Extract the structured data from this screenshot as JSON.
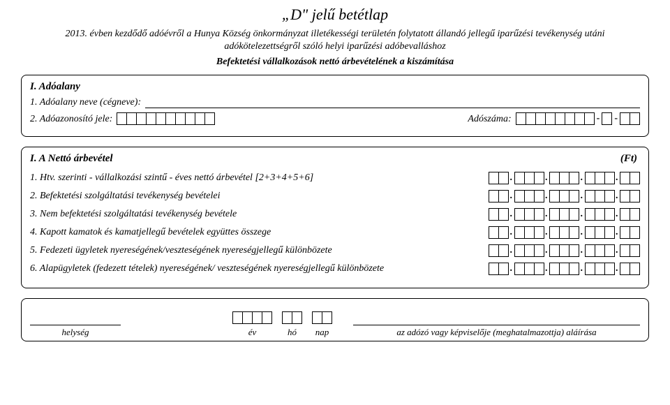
{
  "title": "„D\" jelű betétlap",
  "intro_line1": "2013. évben kezdődő adóévről a Hunya Község önkormányzat illetékességi területén folytatott állandó jellegű iparűzési tevékenység utáni adókötelezettségről szóló helyi iparűzési adóbevalláshoz",
  "subhead": "Befektetési vállalkozások nettó árbevételének a kiszámítása",
  "section1": {
    "title": "I. Adóalany",
    "row1_label": "1. Adóalany neve (cégneve):",
    "row2_label_a": "2. Adóazonosító jele:",
    "row2_label_b": "Adószáma:",
    "tax_id_len": 10,
    "tax_num_parts": [
      8,
      1,
      2
    ],
    "tax_num_sep": "-"
  },
  "section2": {
    "title": "I. A Nettó árbevétel",
    "ft": "(Ft)",
    "rows": [
      "1. Htv. szerinti - vállalkozási szintű - éves nettó árbevétel [2+3+4+5+6]",
      "2. Befektetési szolgáltatási tevékenység bevételei",
      "3. Nem befektetési szolgáltatási tevékenység bevétele",
      "4. Kapott kamatok és kamatjellegű bevételek együttes összege",
      "5. Fedezeti ügyletek nyereségének/veszteségének nyereségjellegű különbözete",
      "6. Alapügyletek (fedezett tételek) nyereségének/ veszteségének nyereségjellegű különbözete"
    ],
    "amount_groups": [
      2,
      3,
      3,
      3,
      2
    ]
  },
  "footer": {
    "place_label": "helység",
    "year_label": "év",
    "year_len": 4,
    "month_label": "hó",
    "month_len": 2,
    "day_label": "nap",
    "day_len": 2,
    "sig_label": "az adózó vagy képviselője (meghatalmazottja) aláírása"
  }
}
